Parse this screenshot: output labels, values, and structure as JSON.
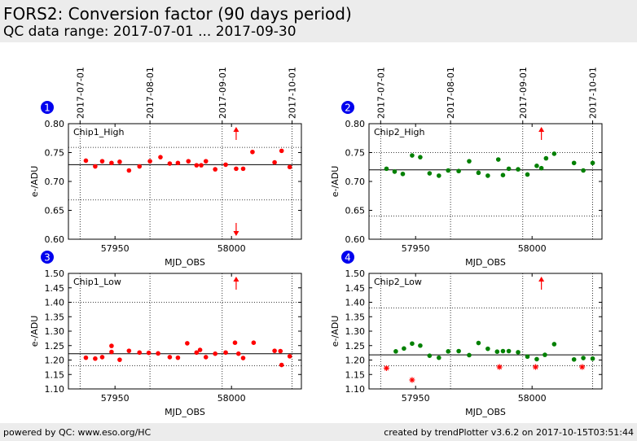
{
  "header": {
    "title": "FORS2: Conversion factor (90 days period)",
    "subtitle": "QC data range: 2017-07-01 ... 2017-09-30"
  },
  "footer": {
    "left": "powered by QC: www.eso.org/HC",
    "right": "created by trendPlotter v3.6.2 on 2017-10-15T03:51:44"
  },
  "colors": {
    "header_bg": "#ececec",
    "badge": "#0000ee",
    "red_series": "#ff0000",
    "green_series": "#008000"
  },
  "chart_data": [
    {
      "type": "scatter",
      "panel_number": "1",
      "label": "Chip1_High",
      "color": "#ff0000",
      "xlabel": "MJD_OBS",
      "ylabel": "e-/ADU",
      "xlim": [
        57930,
        58030
      ],
      "ylim": [
        0.6,
        0.8
      ],
      "yticks": [
        0.6,
        0.65,
        0.7,
        0.75,
        0.8
      ],
      "ytick_labels": [
        "0.60",
        "0.65",
        "0.70",
        "0.75",
        "0.80"
      ],
      "xticks": [
        57950,
        58000
      ],
      "xtick_labels": [
        "57950",
        "58000"
      ],
      "date_ticks": [
        {
          "mjd": 57935,
          "label": "2017-07-01"
        },
        {
          "mjd": 57965,
          "label": "2017-08-01"
        },
        {
          "mjd": 57996,
          "label": "2017-09-01"
        },
        {
          "mjd": 58026,
          "label": "2017-10-01"
        }
      ],
      "reference_line": 0.729,
      "threshold_lines": [
        0.668,
        0.759
      ],
      "points": {
        "x": [
          57937.5,
          57941.5,
          57944.5,
          57948.5,
          57952,
          57956,
          57960.5,
          57965,
          57969.5,
          57973.5,
          57977,
          57981.5,
          57985,
          57987,
          57989,
          57993,
          57997.5,
          58002,
          58005,
          58009,
          58018.5,
          58021.5,
          58025
        ],
        "y": [
          0.736,
          0.726,
          0.735,
          0.732,
          0.734,
          0.719,
          0.726,
          0.735,
          0.742,
          0.731,
          0.732,
          0.735,
          0.728,
          0.728,
          0.735,
          0.721,
          0.729,
          0.722,
          0.722,
          0.751,
          0.733,
          0.753,
          0.725
        ]
      },
      "outliers": [],
      "arrows": [
        {
          "x": 58002,
          "direction": "up"
        },
        {
          "x": 58002,
          "direction": "down"
        }
      ]
    },
    {
      "type": "scatter",
      "panel_number": "2",
      "label": "Chip2_High",
      "color": "#008000",
      "xlabel": "MJD_OBS",
      "ylabel": "e-/ADU",
      "xlim": [
        57930,
        58030
      ],
      "ylim": [
        0.6,
        0.8
      ],
      "yticks": [
        0.6,
        0.65,
        0.7,
        0.75,
        0.8
      ],
      "ytick_labels": [
        "0.60",
        "0.65",
        "0.70",
        "0.75",
        "0.80"
      ],
      "xticks": [
        57950,
        58000
      ],
      "xtick_labels": [
        "57950",
        "58000"
      ],
      "date_ticks": [
        {
          "mjd": 57935,
          "label": "2017-07-01"
        },
        {
          "mjd": 57965,
          "label": "2017-08-01"
        },
        {
          "mjd": 57996,
          "label": "2017-09-01"
        },
        {
          "mjd": 58026,
          "label": "2017-10-01"
        }
      ],
      "reference_line": 0.72,
      "threshold_lines": [
        0.64,
        0.75
      ],
      "points": {
        "x": [
          57937.5,
          57941,
          57944.5,
          57948.5,
          57952,
          57956,
          57960,
          57964,
          57968.5,
          57973,
          57977,
          57981,
          57985.5,
          57987.5,
          57990,
          57994,
          57998,
          58002,
          58004,
          58006,
          58009.5,
          58018,
          58022,
          58026
        ],
        "y": [
          0.722,
          0.717,
          0.713,
          0.745,
          0.742,
          0.714,
          0.71,
          0.719,
          0.718,
          0.735,
          0.715,
          0.71,
          0.738,
          0.711,
          0.722,
          0.721,
          0.712,
          0.727,
          0.723,
          0.74,
          0.748,
          0.732,
          0.719,
          0.732
        ]
      },
      "outliers": [],
      "arrows": [
        {
          "x": 58004,
          "direction": "up"
        }
      ]
    },
    {
      "type": "scatter",
      "panel_number": "3",
      "label": "Chip1_Low",
      "color": "#ff0000",
      "xlabel": "MJD_OBS",
      "ylabel": "e-/ADU",
      "xlim": [
        57930,
        58030
      ],
      "ylim": [
        1.1,
        1.5
      ],
      "yticks": [
        1.1,
        1.15,
        1.2,
        1.25,
        1.3,
        1.35,
        1.4,
        1.45,
        1.5
      ],
      "ytick_labels": [
        "1.10",
        "1.15",
        "1.20",
        "1.25",
        "1.30",
        "1.35",
        "1.40",
        "1.45",
        "1.50"
      ],
      "xticks": [
        57950,
        58000
      ],
      "xtick_labels": [
        "57950",
        "58000"
      ],
      "date_ticks": [
        {
          "mjd": 57935,
          "label": "2017-07-01"
        },
        {
          "mjd": 57965,
          "label": "2017-08-01"
        },
        {
          "mjd": 57996,
          "label": "2017-09-01"
        },
        {
          "mjd": 58026,
          "label": "2017-10-01"
        }
      ],
      "reference_line": 1.222,
      "threshold_lines": [
        1.18,
        1.4
      ],
      "points": {
        "x": [
          57937.5,
          57941.5,
          57944.5,
          57948.5,
          57948.5,
          57952,
          57956,
          57960.5,
          57964.5,
          57968.5,
          57973.5,
          57977,
          57981,
          57985,
          57986.5,
          57989,
          57993,
          57997.5,
          58001.5,
          58003,
          58005,
          58009.5,
          58018.5,
          58021,
          58021.5,
          58025
        ],
        "y": [
          1.208,
          1.205,
          1.21,
          1.228,
          1.249,
          1.201,
          1.232,
          1.226,
          1.225,
          1.223,
          1.21,
          1.208,
          1.258,
          1.226,
          1.235,
          1.21,
          1.222,
          1.226,
          1.26,
          1.222,
          1.207,
          1.26,
          1.232,
          1.231,
          1.183,
          1.213
        ]
      },
      "outliers": [],
      "arrows": [
        {
          "x": 58002,
          "direction": "up"
        }
      ]
    },
    {
      "type": "scatter",
      "panel_number": "4",
      "label": "Chip2_Low",
      "color": "#008000",
      "xlabel": "MJD_OBS",
      "ylabel": "e-/ADU",
      "xlim": [
        57930,
        58030
      ],
      "ylim": [
        1.1,
        1.5
      ],
      "yticks": [
        1.1,
        1.15,
        1.2,
        1.25,
        1.3,
        1.35,
        1.4,
        1.45,
        1.5
      ],
      "ytick_labels": [
        "1.10",
        "1.15",
        "1.20",
        "1.25",
        "1.30",
        "1.35",
        "1.40",
        "1.45",
        "1.50"
      ],
      "xticks": [
        57950,
        58000
      ],
      "xtick_labels": [
        "57950",
        "58000"
      ],
      "date_ticks": [
        {
          "mjd": 57935,
          "label": "2017-07-01"
        },
        {
          "mjd": 57965,
          "label": "2017-08-01"
        },
        {
          "mjd": 57996,
          "label": "2017-09-01"
        },
        {
          "mjd": 58026,
          "label": "2017-10-01"
        }
      ],
      "reference_line": 1.218,
      "threshold_lines": [
        1.18,
        1.38
      ],
      "points": {
        "x": [
          57941.5,
          57945,
          57948.5,
          57952,
          57956,
          57960,
          57964,
          57968.5,
          57973,
          57977,
          57981,
          57985,
          57987.5,
          57990,
          57994,
          57998,
          58002,
          58005.5,
          58009.5,
          58018,
          58022,
          58026
        ],
        "y": [
          1.23,
          1.24,
          1.257,
          1.25,
          1.215,
          1.208,
          1.23,
          1.231,
          1.217,
          1.259,
          1.239,
          1.229,
          1.231,
          1.231,
          1.227,
          1.212,
          1.203,
          1.218,
          1.255,
          1.202,
          1.207,
          1.205
        ]
      },
      "outliers": {
        "x": [
          57937.5,
          57948.5,
          57986,
          58001.5,
          58021.5
        ],
        "y": [
          1.172,
          1.131,
          1.176,
          1.176,
          1.176
        ]
      },
      "arrows": [
        {
          "x": 58004,
          "direction": "up"
        }
      ]
    }
  ]
}
